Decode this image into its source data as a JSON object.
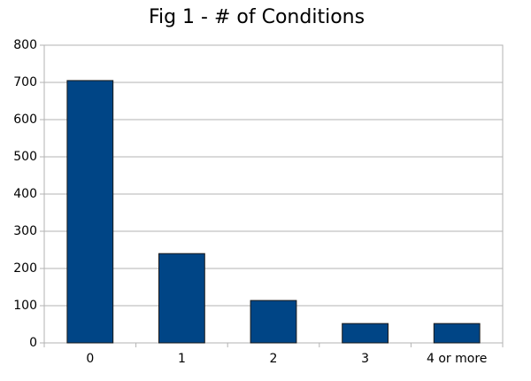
{
  "chart_data": {
    "type": "bar",
    "title": "Fig 1 - # of Conditions",
    "categories": [
      "0",
      "1",
      "2",
      "3",
      "4 or more"
    ],
    "values": [
      705,
      240,
      114,
      52,
      52
    ],
    "color": "#004586",
    "ylim": [
      0,
      800
    ],
    "yticks": [
      0,
      100,
      200,
      300,
      400,
      500,
      600,
      700,
      800
    ],
    "grid": true
  }
}
